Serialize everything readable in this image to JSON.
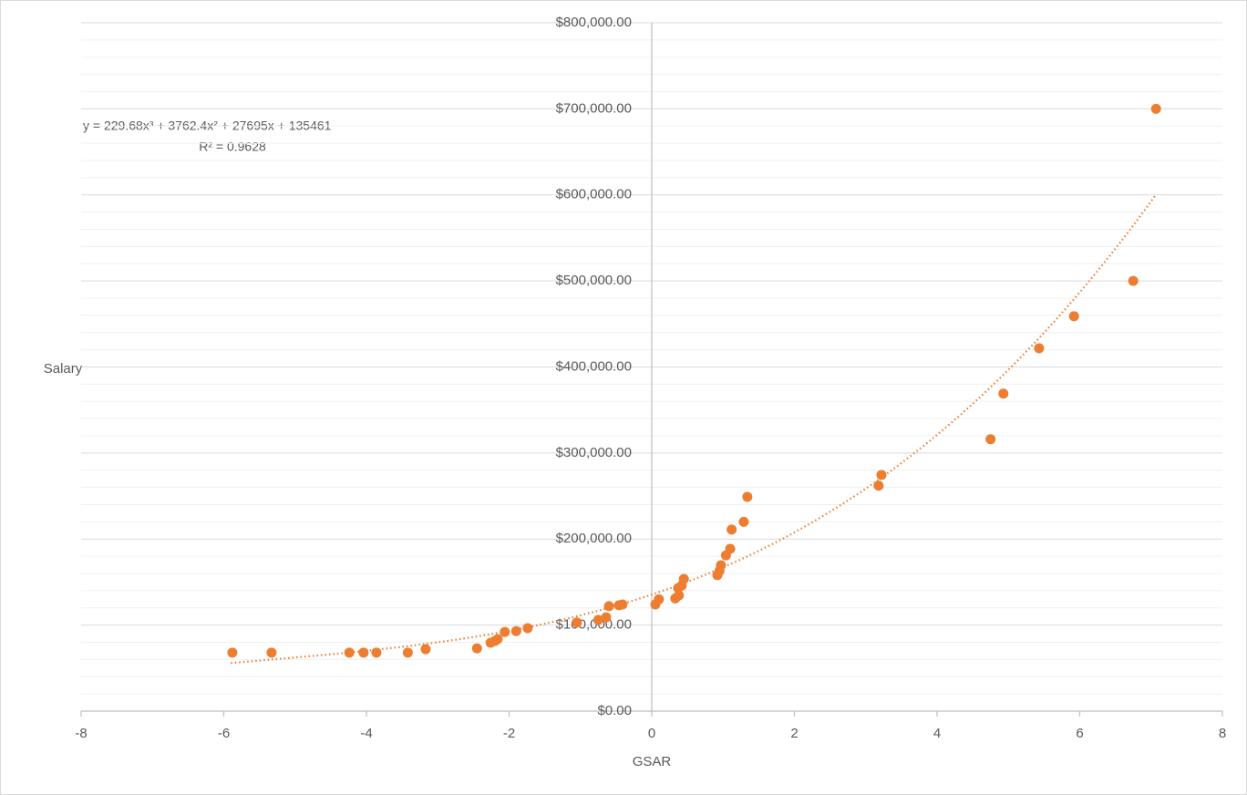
{
  "chart_data": {
    "type": "scatter",
    "x_label": "GSAR",
    "y_label": "Salary",
    "color": "#ED7D31",
    "x": [
      -5.88,
      -5.33,
      -4.24,
      -4.04,
      -3.86,
      -3.42,
      -3.17,
      -2.45,
      -2.26,
      -2.2,
      -2.16,
      -2.06,
      -1.9,
      -1.74,
      -1.05,
      -0.75,
      -0.64,
      -0.6,
      -0.46,
      -0.41,
      0.05,
      0.1,
      0.33,
      0.38,
      0.37,
      0.42,
      0.45,
      0.92,
      0.95,
      0.97,
      1.04,
      1.1,
      1.12,
      1.29,
      1.34,
      3.18,
      3.22,
      4.75,
      4.93,
      5.43,
      5.92,
      6.75,
      7.07
    ],
    "values": [
      68000,
      68000,
      68000,
      68000,
      68000,
      68000,
      72000,
      73000,
      79500,
      81500,
      83700,
      92000,
      93000,
      96400,
      103000,
      106000,
      109000,
      122000,
      123000,
      124000,
      124000,
      130000,
      131000,
      134600,
      143000,
      146000,
      153600,
      158000,
      163000,
      169500,
      181000,
      188600,
      211000,
      220000,
      249000,
      262000,
      274500,
      316000,
      369000,
      421700,
      459000,
      500000,
      700000
    ],
    "xlim": [
      -8,
      8
    ],
    "xticks": [
      -8,
      -6,
      -4,
      -2,
      0,
      2,
      4,
      6,
      8
    ],
    "ylim": [
      0,
      800000
    ],
    "yticks": [
      {
        "value": 0,
        "label": "$0.00"
      },
      {
        "value": 100000,
        "label": "$100,000.00"
      },
      {
        "value": 200000,
        "label": "$200,000.00"
      },
      {
        "value": 300000,
        "label": "$300,000.00"
      },
      {
        "value": 400000,
        "label": "$400,000.00"
      },
      {
        "value": 500000,
        "label": "$500,000.00"
      },
      {
        "value": 600000,
        "label": "$600,000.00"
      },
      {
        "value": 700000,
        "label": "$700,000.00"
      },
      {
        "value": 800000,
        "label": "$800,000.00"
      }
    ],
    "grid": true,
    "minor_grid": true,
    "trendline": {
      "equation": "y = 229.68x³ + 3762.4x² + 27695x + 135461",
      "r_squared": "R² = 0.9628",
      "coefficients": [
        229.68,
        3762.4,
        27695,
        135461
      ],
      "x_range": [
        -5.9,
        7.07
      ]
    }
  }
}
